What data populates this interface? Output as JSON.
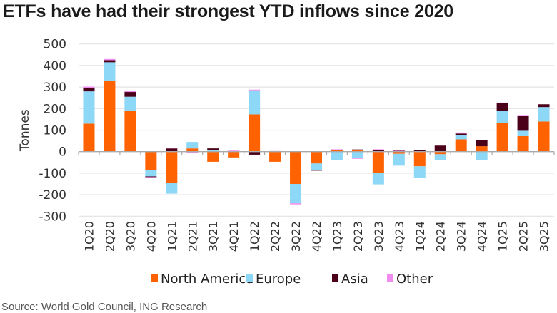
{
  "chart_data": {
    "type": "bar",
    "stacked": true,
    "title": "ETFs have had their strongest YTD inflows since 2020",
    "ylabel": "Tonnes",
    "xlabel": "",
    "ylim": [
      -300,
      500
    ],
    "yticks": [
      500,
      400,
      300,
      200,
      100,
      0,
      -100,
      -200,
      -300
    ],
    "grid": true,
    "legend_position": "bottom",
    "categories": [
      "1Q20",
      "2Q20",
      "3Q20",
      "4Q20",
      "1Q21",
      "2Q21",
      "3Q21",
      "4Q21",
      "1Q22",
      "2Q22",
      "3Q22",
      "4Q22",
      "1Q23",
      "2Q23",
      "3Q23",
      "4Q23",
      "1Q24",
      "2Q24",
      "3Q24",
      "4Q24",
      "1Q25",
      "2Q25",
      "3Q25"
    ],
    "series": [
      {
        "name": "North America",
        "color": "#ff6200",
        "values": [
          130,
          330,
          190,
          -85,
          -145,
          15,
          -47,
          -27,
          173,
          -47,
          -150,
          -55,
          8,
          6,
          -97,
          -10,
          -68,
          -12,
          57,
          25,
          132,
          72,
          140
        ]
      },
      {
        "name": "Europe",
        "color": "#8dd7f7",
        "values": [
          150,
          85,
          65,
          -30,
          -50,
          30,
          8,
          0,
          112,
          0,
          -90,
          -30,
          -40,
          -30,
          -55,
          -55,
          -55,
          -27,
          20,
          -40,
          57,
          25,
          67
        ]
      },
      {
        "name": "Asia",
        "color": "#4a0018",
        "values": [
          17,
          10,
          22,
          -3,
          15,
          0,
          7,
          3,
          -14,
          0,
          0,
          -3,
          0,
          4,
          8,
          5,
          6,
          28,
          7,
          30,
          37,
          70,
          13
        ]
      },
      {
        "name": "Other",
        "color": "#f08cf0",
        "values": [
          5,
          5,
          5,
          -5,
          3,
          -5,
          0,
          2,
          3,
          3,
          -5,
          0,
          3,
          -3,
          3,
          2,
          0,
          0,
          5,
          0,
          2,
          3,
          0
        ]
      }
    ]
  },
  "source": "Source: World Gold Council, ING Research"
}
